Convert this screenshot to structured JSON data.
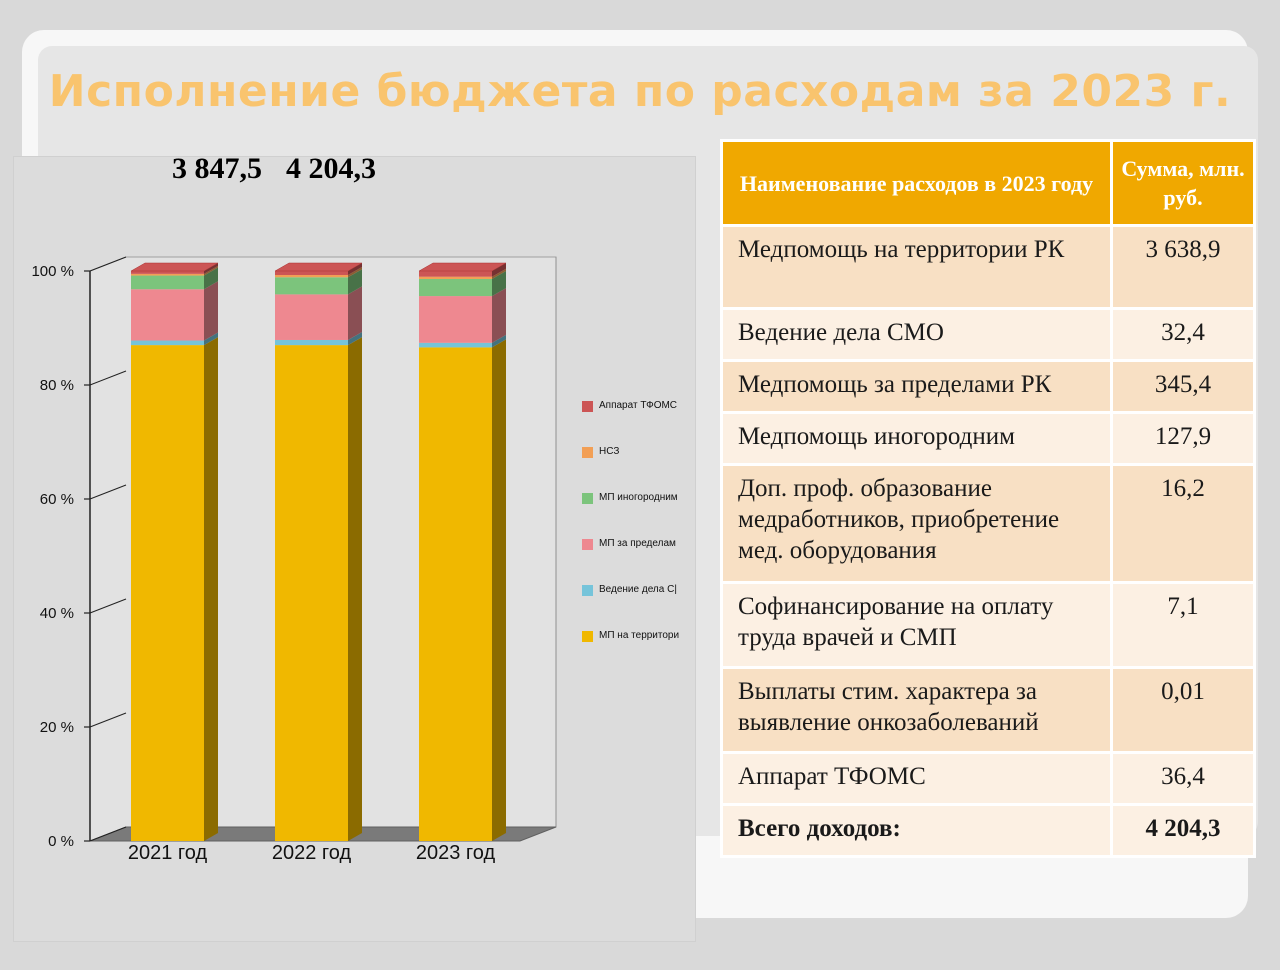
{
  "title": "Исполнение бюджета по расходам за 2023 г.",
  "top_labels": [
    "3 847,5",
    "4 204,3"
  ],
  "colors": {
    "mp_territory": "#f0b800",
    "smo": "#76c4da",
    "mp_outside": "#ee8890",
    "mp_other_city": "#7cc47c",
    "nsz": "#f29f55",
    "apparat": "#cc5555"
  },
  "chart_data": {
    "type": "bar",
    "stacked": true,
    "three_d": true,
    "categories": [
      "2021 год",
      "2022 год",
      "2023 год"
    ],
    "ylim": [
      0,
      100
    ],
    "yticks": [
      "0 %",
      "20 %",
      "40 %",
      "60 %",
      "80 %",
      "100 %"
    ],
    "legend_position": "right",
    "series": [
      {
        "name": "МП на территори",
        "color": "#f0b800",
        "values": [
          87.0,
          87.0,
          86.6
        ]
      },
      {
        "name": "Ведение дела С|",
        "color": "#76c4da",
        "values": [
          0.8,
          0.9,
          0.8
        ]
      },
      {
        "name": "МП за пределам",
        "color": "#ee8890",
        "values": [
          9.0,
          8.0,
          8.2
        ]
      },
      {
        "name": "МП иногородним",
        "color": "#7cc47c",
        "values": [
          2.4,
          3.0,
          3.0
        ]
      },
      {
        "name": "НСЗ",
        "color": "#f29f55",
        "values": [
          0.3,
          0.4,
          0.4
        ]
      },
      {
        "name": "Аппарат ТФОМС",
        "color": "#cc5555",
        "values": [
          0.5,
          0.7,
          1.0
        ]
      }
    ]
  },
  "table": {
    "header": [
      "Наименование расходов в 2023 году",
      "Сумма, млн. руб."
    ],
    "rows": [
      {
        "name": "Медпомощь на территории РК",
        "value": "3 638,9"
      },
      {
        "name": "Ведение дела СМО",
        "value": "32,4"
      },
      {
        "name": "Медпомощь за пределами РК",
        "value": "345,4"
      },
      {
        "name": "Медпомощь иногородним",
        "value": "127,9"
      },
      {
        "name": "Доп. проф. образование медработников, приобретение мед. оборудования",
        "value": "16,2"
      },
      {
        "name": "Софинансирование на оплату труда врачей и СМП",
        "value": "7,1"
      },
      {
        "name": "Выплаты стим. характера за выявление онкозаболеваний",
        "value": "0,01"
      },
      {
        "name": "Аппарат ТФОМС",
        "value": "36,4"
      }
    ],
    "total": {
      "name": "Всего доходов:",
      "value": "4 204,3"
    }
  }
}
